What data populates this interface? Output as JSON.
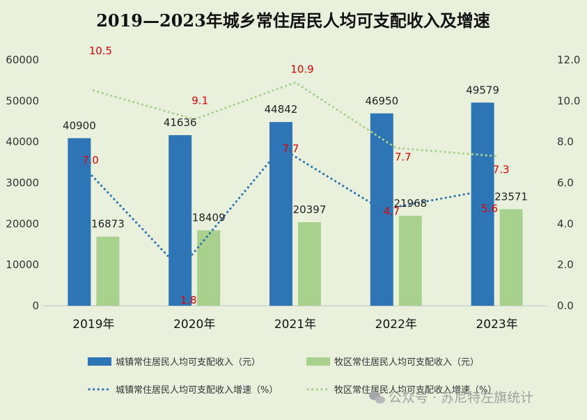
{
  "chart_data": {
    "type": "bar",
    "title": "2019—2023年城乡常住居民人均可支配收入及增速",
    "categories": [
      "2019年",
      "2020年",
      "2021年",
      "2022年",
      "2023年"
    ],
    "series": [
      {
        "name": "城镇常住居民人均可支配收入（元）",
        "kind": "bar",
        "axis": "left",
        "color": "#2e75b6",
        "values": [
          40900,
          41636,
          44842,
          46950,
          49579
        ]
      },
      {
        "name": "牧区常住居民人均可支配收入（元）",
        "kind": "bar",
        "axis": "left",
        "color": "#a9d18e",
        "values": [
          16873,
          18409,
          20397,
          21968,
          23571
        ]
      },
      {
        "name": "城镇常住居民人均可支配收入增速（%）",
        "kind": "line",
        "style": "dotted",
        "axis": "right",
        "color": "#2e75b6",
        "values": [
          7.0,
          1.8,
          7.7,
          4.7,
          5.6
        ]
      },
      {
        "name": "牧区常住居民人均可支配收入增速（%）",
        "kind": "line",
        "style": "dotted",
        "axis": "right",
        "color": "#a9d18e",
        "values": [
          10.5,
          9.1,
          10.9,
          7.7,
          7.3
        ]
      }
    ],
    "y_left": {
      "min": 0,
      "max": 60000,
      "ticks": [
        "0",
        "10000",
        "20000",
        "30000",
        "40000",
        "50000",
        "60000"
      ]
    },
    "y_right": {
      "min": 0,
      "max": 12,
      "ticks": [
        "0.0",
        "2.0",
        "4.0",
        "6.0",
        "8.0",
        "10.0",
        "12.0"
      ]
    },
    "rate_labels": {
      "urban": [
        "7.0",
        "1.8",
        "7.7",
        "4.7",
        "5.6"
      ],
      "pastoral": [
        "10.5",
        "9.1",
        "10.9",
        "7.7",
        "7.3"
      ]
    },
    "grid": false,
    "legend_position": "bottom",
    "label_color": "#e00000"
  },
  "watermark": {
    "icon": "wechat-icon",
    "text": "公众号 · 苏尼特左旗统计"
  }
}
